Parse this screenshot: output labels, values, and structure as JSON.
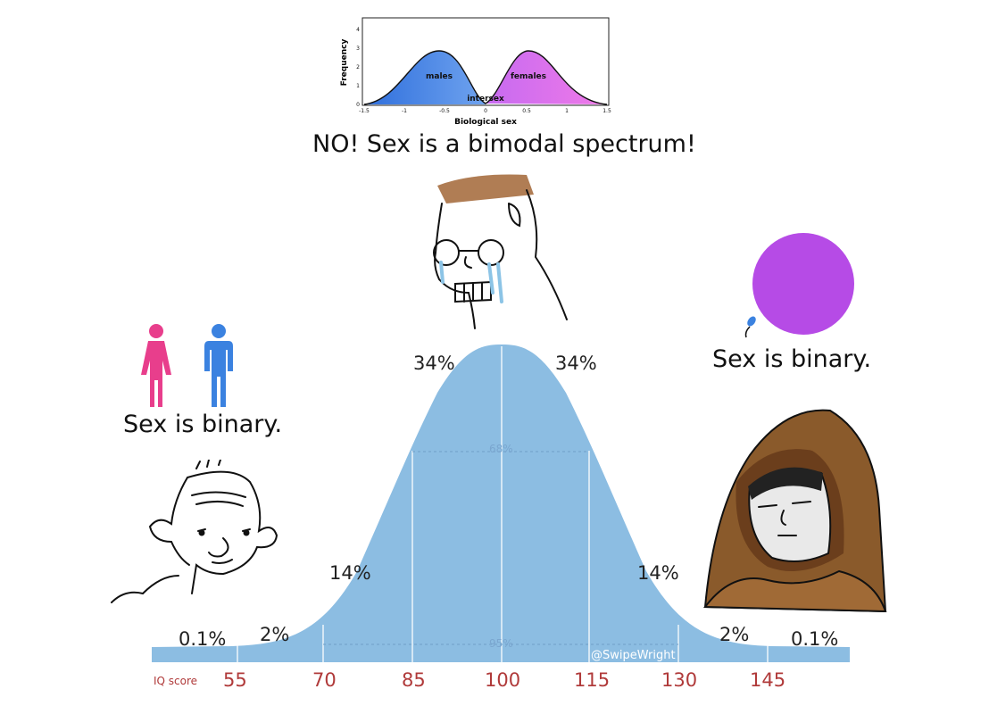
{
  "inset_chart": {
    "ylabel": "Frequency",
    "xlabel": "Biological sex",
    "y_ticks": [
      "0",
      "1",
      "2",
      "3",
      "4"
    ],
    "x_ticks": [
      "-1.5",
      "-1",
      "-0.5",
      "0",
      "0.5",
      "1",
      "1.5"
    ],
    "labels": {
      "left": "males",
      "right": "females",
      "middle": "intersex"
    },
    "colors": {
      "males": "#3d7fe0",
      "females": "#ea6df0"
    }
  },
  "captions": {
    "top": "NO! Sex is a bimodal spectrum!",
    "left": "Sex is binary.",
    "right": "Sex is binary."
  },
  "bell": {
    "color": "#8cbde2",
    "percent_labels": {
      "far_left": "0.1%",
      "left_tail": "2%",
      "left_mid": "14%",
      "left_center": "34%",
      "right_center": "34%",
      "right_mid": "14%",
      "right_tail": "2%",
      "far_right": "0.1%"
    },
    "inner_labels": {
      "inner68": "68%",
      "inner95": "95%"
    },
    "axis_label": "IQ score",
    "ticks": [
      "55",
      "70",
      "85",
      "100",
      "115",
      "130",
      "145"
    ],
    "credit": "@SwipeWright"
  },
  "icons": {
    "woman_color": "#e83e8c",
    "man_color": "#3b82e0",
    "egg_color": "#b64be6"
  }
}
